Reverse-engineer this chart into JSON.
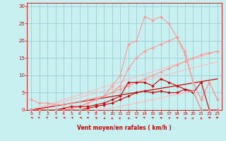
{
  "xlabel": "Vent moyen/en rafales ( km/h )",
  "ylabel": "",
  "bg_color": "#c8f0f0",
  "grid_color": "#90c8cc",
  "xlim": [
    -0.5,
    23.5
  ],
  "ylim": [
    0,
    31
  ],
  "xticks": [
    0,
    1,
    2,
    3,
    4,
    5,
    6,
    7,
    8,
    9,
    10,
    11,
    12,
    13,
    14,
    15,
    16,
    17,
    18,
    19,
    20,
    21,
    22,
    23
  ],
  "yticks": [
    0,
    5,
    10,
    15,
    20,
    25,
    30
  ],
  "lines": [
    {
      "x": [
        0,
        1,
        2,
        3,
        4,
        5,
        6,
        7,
        8,
        9,
        10,
        11,
        12,
        13,
        14,
        15,
        16,
        17,
        18,
        19,
        20,
        21,
        22,
        23
      ],
      "y": [
        3.0,
        2.0,
        2.0,
        1.5,
        1.5,
        2.0,
        2.5,
        3.0,
        3.5,
        4.0,
        5.0,
        6.0,
        7.0,
        8.0,
        9.0,
        10.0,
        11.0,
        12.0,
        13.0,
        14.0,
        15.0,
        16.0,
        16.5,
        17.0
      ],
      "color": "#ff9999",
      "lw": 0.8,
      "marker": "D",
      "ms": 2.0
    },
    {
      "x": [
        0,
        1,
        2,
        3,
        4,
        5,
        6,
        7,
        8,
        9,
        10,
        11,
        12,
        13,
        14,
        15,
        16,
        17,
        18,
        19,
        20,
        21,
        22,
        23
      ],
      "y": [
        0,
        0,
        0,
        0,
        0,
        0.5,
        1,
        2,
        3,
        4,
        7,
        10,
        19,
        20,
        27,
        26,
        27,
        25,
        21,
        16,
        8,
        3,
        8,
        3
      ],
      "color": "#ff9999",
      "lw": 0.8,
      "marker": "D",
      "ms": 2.0
    },
    {
      "x": [
        0,
        1,
        2,
        3,
        4,
        5,
        6,
        7,
        8,
        9,
        10,
        11,
        12,
        13,
        14,
        15,
        16,
        17,
        18,
        19,
        20,
        21,
        22,
        23
      ],
      "y": [
        0,
        0,
        0,
        0,
        0,
        0.5,
        1,
        2,
        3,
        4,
        5,
        7,
        12,
        15,
        17,
        18,
        19,
        20,
        21,
        17,
        8,
        3,
        8,
        3
      ],
      "color": "#ff9999",
      "lw": 0.8,
      "marker": "D",
      "ms": 2.0
    },
    {
      "x": [
        0,
        23
      ],
      "y": [
        0,
        17
      ],
      "color": "#ffbbbb",
      "lw": 0.8,
      "marker": null,
      "ms": 0
    },
    {
      "x": [
        0,
        23
      ],
      "y": [
        0,
        14
      ],
      "color": "#ffbbbb",
      "lw": 0.8,
      "marker": null,
      "ms": 0
    },
    {
      "x": [
        0,
        1,
        2,
        3,
        4,
        5,
        6,
        7,
        8,
        9,
        10,
        11,
        12,
        13,
        14,
        15,
        16,
        17,
        18,
        19,
        20,
        21,
        22,
        23
      ],
      "y": [
        0,
        0,
        0,
        0,
        0.5,
        1,
        1,
        1,
        1.5,
        2,
        3,
        4,
        8,
        8,
        8,
        7,
        9,
        8,
        7,
        6,
        5,
        8,
        0,
        0
      ],
      "color": "#cc0000",
      "lw": 0.8,
      "marker": "D",
      "ms": 2.0
    },
    {
      "x": [
        0,
        23
      ],
      "y": [
        0,
        9
      ],
      "color": "#cc0000",
      "lw": 0.9,
      "marker": null,
      "ms": 0
    },
    {
      "x": [
        0,
        1,
        2,
        3,
        4,
        5,
        6,
        7,
        8,
        9,
        10,
        11,
        12,
        13,
        14,
        15,
        16,
        17,
        18,
        19,
        20,
        21,
        22,
        23
      ],
      "y": [
        0,
        0,
        0,
        0,
        0,
        0,
        0,
        0.5,
        1,
        1.5,
        2,
        3,
        4,
        5,
        5.5,
        5,
        5.5,
        5,
        5,
        6,
        5.5,
        0,
        0,
        0
      ],
      "color": "#cc0000",
      "lw": 0.8,
      "marker": "D",
      "ms": 2.0
    },
    {
      "x": [
        0,
        1,
        2,
        3,
        4,
        5,
        6,
        7,
        8,
        9,
        10,
        11,
        12,
        13,
        14,
        15,
        16,
        17,
        18,
        19,
        20,
        21,
        22,
        23
      ],
      "y": [
        0,
        0,
        0,
        0,
        0,
        0,
        0,
        0,
        0,
        0.3,
        0.6,
        1,
        1.5,
        2,
        2.5,
        3,
        3.5,
        4,
        4.5,
        5,
        5.5,
        0,
        0,
        0
      ],
      "color": "#ffbbbb",
      "lw": 0.8,
      "marker": "D",
      "ms": 1.5
    }
  ],
  "wind_arrows": {
    "x": [
      0,
      1,
      2,
      3,
      4,
      5,
      6,
      7,
      8,
      9,
      10,
      11,
      12,
      13,
      14,
      15,
      16,
      17,
      18,
      19,
      20,
      21,
      22,
      23
    ],
    "angles": [
      315,
      330,
      330,
      315,
      315,
      310,
      320,
      340,
      350,
      355,
      0,
      5,
      355,
      335,
      330,
      340,
      345,
      350,
      345,
      355,
      5,
      0,
      270,
      90
    ]
  }
}
